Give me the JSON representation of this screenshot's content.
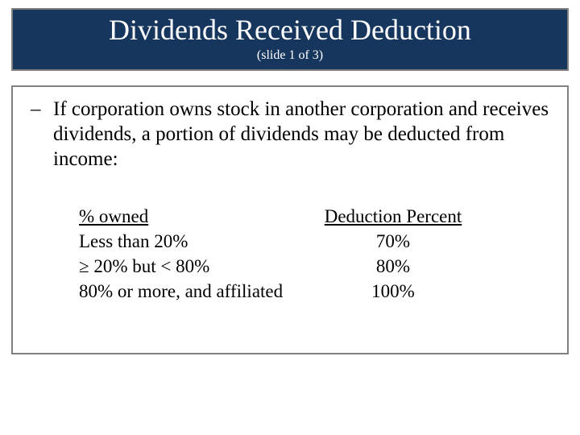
{
  "colors": {
    "title_bg": "#17365d",
    "title_border": "#808080",
    "title_text": "#ffffff",
    "body_border": "#808080",
    "body_bg": "#ffffff",
    "body_text": "#000000"
  },
  "title": {
    "main": "Dividends Received Deduction",
    "sub": "(slide 1 of 3)"
  },
  "bullet": {
    "dash": "–",
    "text": "If corporation owns stock in another corporation and receives dividends, a portion of dividends may be deducted from income:"
  },
  "table": {
    "headers": {
      "c1": "% owned",
      "c2": "Deduction Percent"
    },
    "rows": [
      {
        "c1": "Less than 20%",
        "c2": "70%"
      },
      {
        "c1": "≥ 20% but < 80%",
        "c2": "80%"
      },
      {
        "c1": "80% or more, and affiliated",
        "c2": "100%"
      }
    ]
  }
}
